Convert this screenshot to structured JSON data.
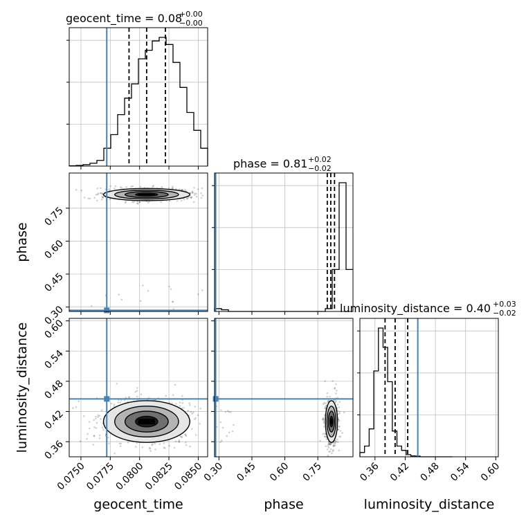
{
  "chart_data": {
    "type": "corner",
    "parameters": [
      {
        "name": "geocent_time",
        "label": "geocent_time",
        "range": [
          0.074,
          0.0858
        ],
        "ticks": [
          0.075,
          0.0775,
          0.08,
          0.0825,
          0.085
        ],
        "tick_labels": [
          "0.0750",
          "0.0775",
          "0.0800",
          "0.0825",
          "0.0850"
        ],
        "truth": 0.0772,
        "quantiles": [
          0.0791,
          0.0806,
          0.0822
        ],
        "title": {
          "main": "geocent_time = 0.08",
          "plus": "+0.00",
          "minus": "−0.00"
        }
      },
      {
        "name": "phase",
        "label": "phase",
        "range": [
          0.28,
          0.91
        ],
        "ticks": [
          0.3,
          0.45,
          0.6,
          0.75
        ],
        "tick_labels": [
          "0.30",
          "0.45",
          "0.60",
          "0.75"
        ],
        "truth": 0.285,
        "quantiles": [
          0.793,
          0.809,
          0.826
        ],
        "title": {
          "main": "phase = 0.81",
          "plus": "+0.02",
          "minus": "−0.02"
        }
      },
      {
        "name": "luminosity_distance",
        "label": "luminosity_distance",
        "range": [
          0.33,
          0.605
        ],
        "ticks": [
          0.36,
          0.42,
          0.48,
          0.54,
          0.6
        ],
        "tick_labels": [
          "0.36",
          "0.42",
          "0.48",
          "0.54",
          "0.60"
        ],
        "truth": 0.445,
        "quantiles": [
          0.38,
          0.4,
          0.425
        ],
        "title": {
          "main": "luminosity_distance = 0.40",
          "plus": "+0.03",
          "minus": "−0.02"
        }
      }
    ],
    "marginals": {
      "geocent_time": {
        "bin_start": 0.074,
        "bin_width": 0.00059,
        "counts": [
          0.5,
          1,
          2,
          4,
          8,
          25,
          44,
          72,
          95,
          115,
          150,
          162,
          175,
          180,
          170,
          145,
          110,
          75,
          50,
          25,
          12,
          5,
          2,
          1,
          0.5
        ]
      },
      "phase": {
        "bin_start": 0.28,
        "bin_width": 0.0315,
        "counts": [
          0.5,
          0.3,
          0,
          0,
          0,
          0,
          0,
          0,
          0,
          0,
          0,
          0,
          0,
          0,
          0,
          0,
          0.5,
          7.5,
          23,
          7.5
        ]
      },
      "luminosity_distance": {
        "bin_start": 0.33,
        "bin_width": 0.0092,
        "counts": [
          2,
          5,
          13,
          40,
          60,
          51,
          35,
          12,
          5,
          3,
          1,
          0.4,
          0.3,
          0,
          0,
          0,
          0,
          0,
          0,
          0
        ]
      }
    },
    "joint": [
      {
        "x": "geocent_time",
        "y": "phase",
        "center": [
          0.0806,
          0.812
        ],
        "sigma": [
          0.0016,
          0.012
        ],
        "outliers": 0.02
      },
      {
        "x": "geocent_time",
        "y": "luminosity_distance",
        "center": [
          0.0806,
          0.4
        ],
        "sigma": [
          0.0016,
          0.018
        ],
        "outliers": 0.01
      },
      {
        "x": "phase",
        "y": "luminosity_distance",
        "center": [
          0.812,
          0.4
        ],
        "sigma": [
          0.012,
          0.018
        ],
        "outliers": 0.02
      }
    ],
    "colors": {
      "truth": "#4682b4",
      "hist": "#000000",
      "grid": "#c0c0c0",
      "samples": "#000000"
    }
  }
}
